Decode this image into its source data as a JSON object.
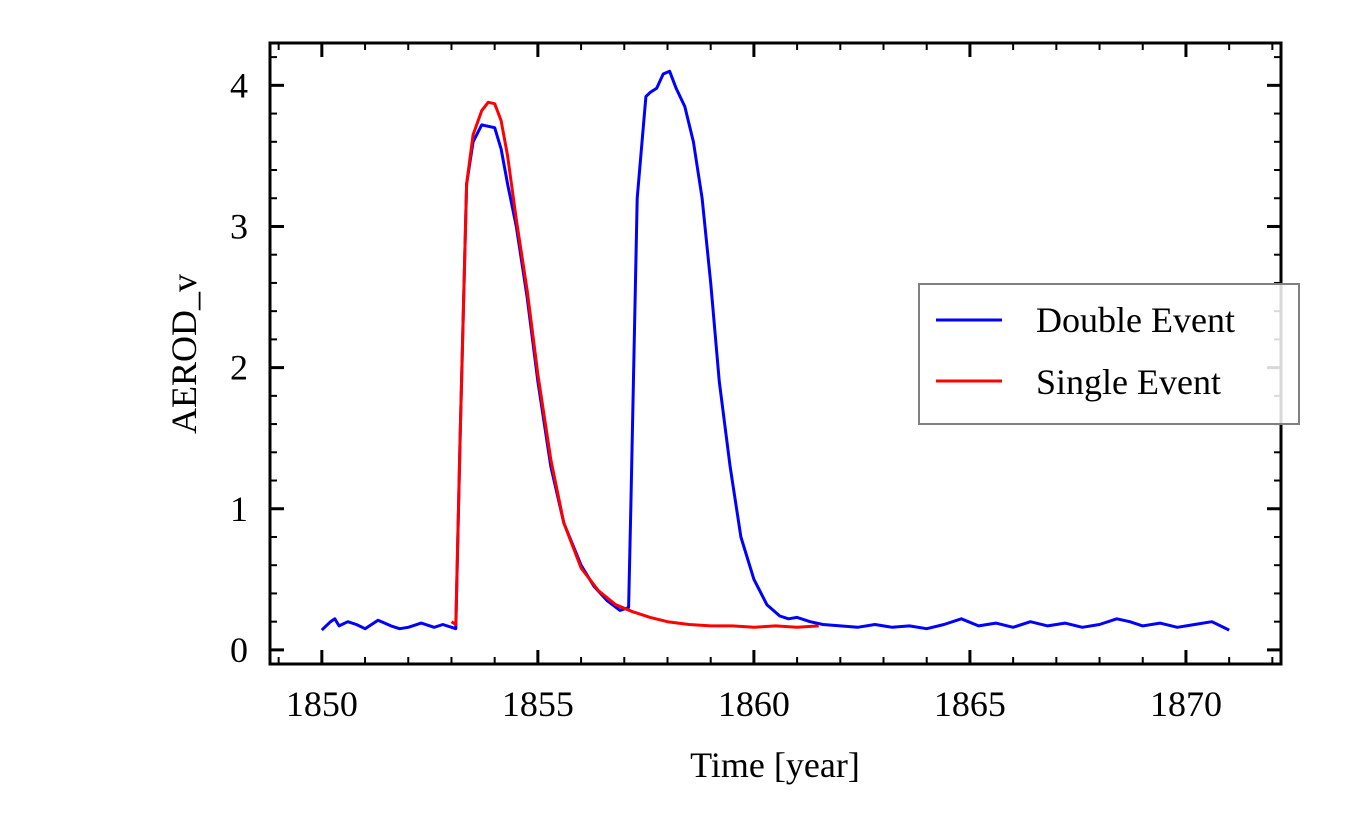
{
  "chart_data": {
    "type": "line",
    "title": "",
    "xlabel": "Time [year]",
    "ylabel": "AEROD_v",
    "xlim": [
      1848.8,
      1872.2
    ],
    "ylim": [
      -0.1,
      4.3
    ],
    "xticks": [
      1850,
      1855,
      1860,
      1865,
      1870
    ],
    "xtick_labels": [
      "1850",
      "1855",
      "1860",
      "1865",
      "1870"
    ],
    "yticks": [
      0,
      1,
      2,
      3,
      4
    ],
    "ytick_labels": [
      "0",
      "1",
      "2",
      "3",
      "4"
    ],
    "grid": false,
    "legend": {
      "position": "center-right",
      "entries": [
        "Double Event",
        "Single Event"
      ]
    },
    "series": [
      {
        "name": "Double Event",
        "color": "#0000ff",
        "x": [
          1850.0,
          1850.2,
          1850.3,
          1850.4,
          1850.6,
          1850.8,
          1851.0,
          1851.3,
          1851.6,
          1851.8,
          1852.0,
          1852.3,
          1852.6,
          1852.8,
          1853.0,
          1853.1,
          1853.2,
          1853.35,
          1853.5,
          1853.7,
          1853.85,
          1854.0,
          1854.15,
          1854.3,
          1854.5,
          1854.75,
          1855.0,
          1855.3,
          1855.6,
          1856.0,
          1856.3,
          1856.6,
          1856.9,
          1857.1,
          1857.15,
          1857.3,
          1857.5,
          1857.6,
          1857.75,
          1857.9,
          1858.05,
          1858.2,
          1858.4,
          1858.6,
          1858.8,
          1859.0,
          1859.2,
          1859.45,
          1859.7,
          1860.0,
          1860.3,
          1860.6,
          1860.8,
          1861.0,
          1861.3,
          1861.6,
          1862.0,
          1862.4,
          1862.8,
          1863.2,
          1863.6,
          1864.0,
          1864.4,
          1864.8,
          1865.2,
          1865.6,
          1866.0,
          1866.4,
          1866.8,
          1867.2,
          1867.6,
          1868.0,
          1868.4,
          1868.7,
          1869.0,
          1869.4,
          1869.8,
          1870.2,
          1870.6,
          1871.0
        ],
        "y": [
          0.14,
          0.2,
          0.22,
          0.17,
          0.2,
          0.18,
          0.15,
          0.21,
          0.17,
          0.15,
          0.16,
          0.19,
          0.16,
          0.18,
          0.16,
          0.15,
          1.5,
          3.3,
          3.6,
          3.72,
          3.71,
          3.7,
          3.55,
          3.3,
          3.0,
          2.5,
          1.9,
          1.3,
          0.9,
          0.6,
          0.45,
          0.35,
          0.28,
          0.3,
          1.0,
          3.2,
          3.92,
          3.95,
          3.98,
          4.08,
          4.1,
          3.98,
          3.85,
          3.6,
          3.2,
          2.6,
          1.9,
          1.3,
          0.8,
          0.5,
          0.32,
          0.24,
          0.22,
          0.23,
          0.2,
          0.18,
          0.17,
          0.16,
          0.18,
          0.16,
          0.17,
          0.15,
          0.18,
          0.22,
          0.17,
          0.19,
          0.16,
          0.2,
          0.17,
          0.19,
          0.16,
          0.18,
          0.22,
          0.2,
          0.17,
          0.19,
          0.16,
          0.18,
          0.2,
          0.14
        ]
      },
      {
        "name": "Single Event",
        "color": "#ff0000",
        "x": [
          1853.0,
          1853.1,
          1853.2,
          1853.35,
          1853.5,
          1853.7,
          1853.85,
          1854.0,
          1854.15,
          1854.3,
          1854.5,
          1854.75,
          1855.0,
          1855.3,
          1855.6,
          1856.0,
          1856.4,
          1856.8,
          1857.2,
          1857.6,
          1858.0,
          1858.5,
          1859.0,
          1859.5,
          1860.0,
          1860.5,
          1861.0,
          1861.5
        ],
        "y": [
          0.2,
          0.18,
          1.5,
          3.3,
          3.65,
          3.82,
          3.88,
          3.87,
          3.75,
          3.5,
          3.05,
          2.55,
          1.95,
          1.35,
          0.9,
          0.58,
          0.42,
          0.32,
          0.27,
          0.23,
          0.2,
          0.18,
          0.17,
          0.17,
          0.16,
          0.17,
          0.16,
          0.17
        ]
      }
    ]
  }
}
